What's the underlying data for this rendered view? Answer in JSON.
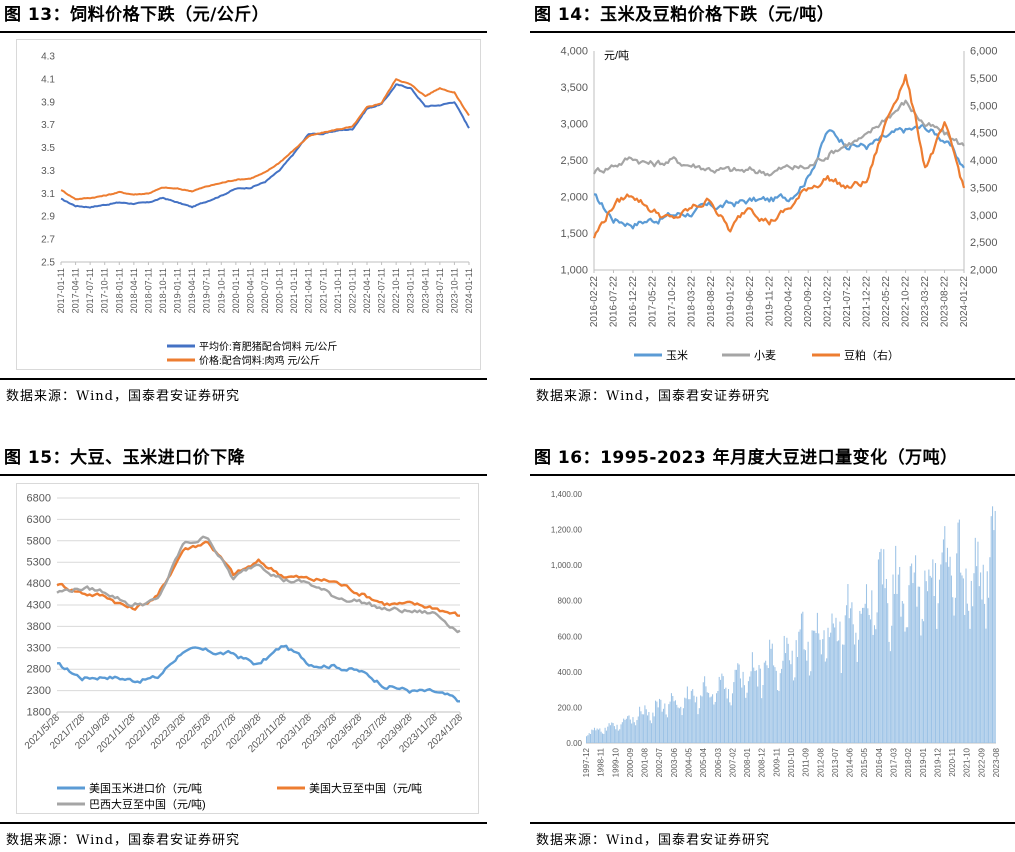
{
  "sources": {
    "p13": "数据来源：Wind，国泰君安证券研究",
    "p14": "数据来源：Wind，国泰君安证券研究",
    "p15": "数据来源：Wind，国泰君安证券研究",
    "p16": "数据来源：Wind，国泰君安证券研究"
  },
  "chart_data": [
    {
      "id": "fig13",
      "type": "line",
      "title": "图 13：饲料价格下跌（元/公斤）",
      "ylim": [
        2.5,
        4.3
      ],
      "yticks": [
        "2.5",
        "2.7",
        "2.9",
        "3.1",
        "3.3",
        "3.5",
        "3.7",
        "3.9",
        "4.1",
        "4.3"
      ],
      "categories": [
        "2017-01-11",
        "2017-04-11",
        "2017-07-11",
        "2017-10-11",
        "2018-01-11",
        "2018-04-11",
        "2018-07-11",
        "2018-10-11",
        "2019-01-11",
        "2019-04-11",
        "2019-07-11",
        "2019-10-11",
        "2020-01-11",
        "2020-04-11",
        "2020-07-11",
        "2020-10-11",
        "2021-01-11",
        "2021-04-11",
        "2021-07-11",
        "2021-10-11",
        "2022-01-11",
        "2022-04-11",
        "2022-07-11",
        "2022-10-11",
        "2023-01-11",
        "2023-04-11",
        "2023-07-11",
        "2023-10-11",
        "2024-01-11"
      ],
      "grid": false,
      "legend": "bottom",
      "series": [
        {
          "name": "平均价:育肥猪配合饲料 元/公斤",
          "color": "#4472c4",
          "values": [
            3.05,
            2.99,
            2.98,
            3.0,
            3.02,
            3.01,
            3.02,
            3.06,
            3.02,
            2.98,
            3.03,
            3.08,
            3.14,
            3.15,
            3.2,
            3.3,
            3.45,
            3.62,
            3.62,
            3.65,
            3.66,
            3.84,
            3.88,
            4.05,
            4.02,
            3.86,
            3.87,
            3.9,
            3.67
          ]
        },
        {
          "name": "价格:配合饲料:肉鸡 元/公斤",
          "color": "#ed7d31",
          "values": [
            3.13,
            3.05,
            3.06,
            3.08,
            3.11,
            3.09,
            3.1,
            3.15,
            3.14,
            3.12,
            3.16,
            3.19,
            3.22,
            3.23,
            3.28,
            3.37,
            3.48,
            3.6,
            3.63,
            3.66,
            3.68,
            3.85,
            3.89,
            4.1,
            4.05,
            3.95,
            4.02,
            3.98,
            3.78
          ]
        }
      ]
    },
    {
      "id": "fig14",
      "type": "line",
      "title": "图 14：玉米及豆粕价格下跌（元/吨）",
      "unit_label": "元/吨",
      "ylim": [
        1000,
        4000
      ],
      "yticks": [
        "1,000",
        "1,500",
        "2,000",
        "2,500",
        "3,000",
        "3,500",
        "4,000"
      ],
      "y2lim": [
        2000,
        6000
      ],
      "y2ticks": [
        "2,000",
        "2,500",
        "3,000",
        "3,500",
        "4,000",
        "4,500",
        "5,000",
        "5,500",
        "6,000"
      ],
      "categories": [
        "2016-02-22",
        "2016-07-22",
        "2016-12-22",
        "2017-05-22",
        "2017-10-22",
        "2018-03-22",
        "2018-08-22",
        "2019-01-22",
        "2019-06-22",
        "2019-11-22",
        "2020-04-22",
        "2020-09-22",
        "2021-02-22",
        "2021-07-22",
        "2021-12-22",
        "2022-05-22",
        "2022-10-22",
        "2023-03-22",
        "2023-08-22",
        "2024-01-22"
      ],
      "grid": false,
      "legend": "bottom",
      "series": [
        {
          "name": "玉米",
          "color": "#5b9bd5",
          "axis": "left",
          "values": [
            2000,
            1700,
            1650,
            1700,
            1750,
            1800,
            1850,
            1900,
            1950,
            1950,
            2000,
            2300,
            2900,
            2750,
            2700,
            2800,
            2900,
            2950,
            2800,
            2400
          ]
        },
        {
          "name": "小麦",
          "color": "#a5a5a5",
          "axis": "left",
          "values": [
            2350,
            2450,
            2550,
            2450,
            2500,
            2450,
            2400,
            2350,
            2350,
            2350,
            2400,
            2400,
            2600,
            2750,
            2800,
            3100,
            3300,
            3000,
            2850,
            2700
          ]
        },
        {
          "name": "豆粕（右）",
          "color": "#ed7d31",
          "axis": "right",
          "values": [
            2600,
            3200,
            3400,
            3100,
            2900,
            3100,
            3300,
            2700,
            3200,
            2900,
            3100,
            3500,
            3700,
            3500,
            3600,
            4700,
            5600,
            3900,
            4600,
            3500
          ]
        }
      ]
    },
    {
      "id": "fig15",
      "type": "line",
      "title": "图 15：大豆、玉米进口价下降",
      "ylim": [
        1800,
        6800
      ],
      "yticks": [
        "1800",
        "2300",
        "2800",
        "3300",
        "3800",
        "4300",
        "4800",
        "5300",
        "5800",
        "6300",
        "6800"
      ],
      "categories": [
        "2021/5/28",
        "2021/7/28",
        "2021/9/28",
        "2021/11/28",
        "2022/1/28",
        "2022/3/28",
        "2022/5/28",
        "2022/7/28",
        "2022/9/28",
        "2022/11/28",
        "2023/1/28",
        "2023/3/28",
        "2023/5/28",
        "2023/7/28",
        "2023/9/28",
        "2023/11/28",
        "2024/1/28"
      ],
      "grid": true,
      "legend": "bottom",
      "series": [
        {
          "name": "美国玉米进口价（元/吨",
          "color": "#5b9bd5",
          "values": [
            2900,
            2600,
            2650,
            2550,
            2600,
            3250,
            3200,
            3150,
            2900,
            3350,
            2950,
            2900,
            2750,
            2450,
            2300,
            2250,
            2050
          ]
        },
        {
          "name": "美国大豆至中国（元/吨",
          "color": "#ed7d31",
          "values": [
            4800,
            4600,
            4500,
            4200,
            4500,
            5600,
            5800,
            5000,
            5300,
            5000,
            4900,
            4850,
            4600,
            4350,
            4300,
            4250,
            4050
          ]
        },
        {
          "name": "巴西大豆至中国（元/吨)",
          "color": "#a5a5a5",
          "values": [
            4600,
            4700,
            4600,
            4300,
            4400,
            5700,
            5900,
            4900,
            5300,
            4900,
            4800,
            4500,
            4400,
            4200,
            4150,
            4100,
            3700
          ]
        }
      ]
    },
    {
      "id": "fig16",
      "type": "bar",
      "title": "图 16：1995-2023 年月度大豆进口量变化（万吨）",
      "ylim": [
        0,
        1400
      ],
      "yticks": [
        "0.00",
        "200.00",
        "400.00",
        "600.00",
        "800.00",
        "1,000.00",
        "1,200.00",
        "1,400.00"
      ],
      "categories": [
        "1997-12",
        "1998-11",
        "1999-10",
        "2000-09",
        "2001-08",
        "2002-07",
        "2003-06",
        "2004-05",
        "2005-04",
        "2006-03",
        "2007-02",
        "2008-01",
        "2008-12",
        "2009-11",
        "2010-10",
        "2011-09",
        "2012-08",
        "2013-07",
        "2014-06",
        "2015-05",
        "2016-04",
        "2017-03",
        "2018-02",
        "2019-01",
        "2019-12",
        "2020-11",
        "2021-10",
        "2022-09",
        "2023-08"
      ],
      "color": "#9dc3e6",
      "grid": false,
      "legend": "none",
      "series": [
        {
          "name": "",
          "values": [
            60,
            75,
            90,
            130,
            170,
            200,
            220,
            240,
            280,
            300,
            330,
            370,
            410,
            460,
            500,
            560,
            590,
            640,
            680,
            750,
            800,
            850,
            800,
            850,
            950,
            1000,
            900,
            900,
            1000
          ]
        }
      ]
    }
  ]
}
